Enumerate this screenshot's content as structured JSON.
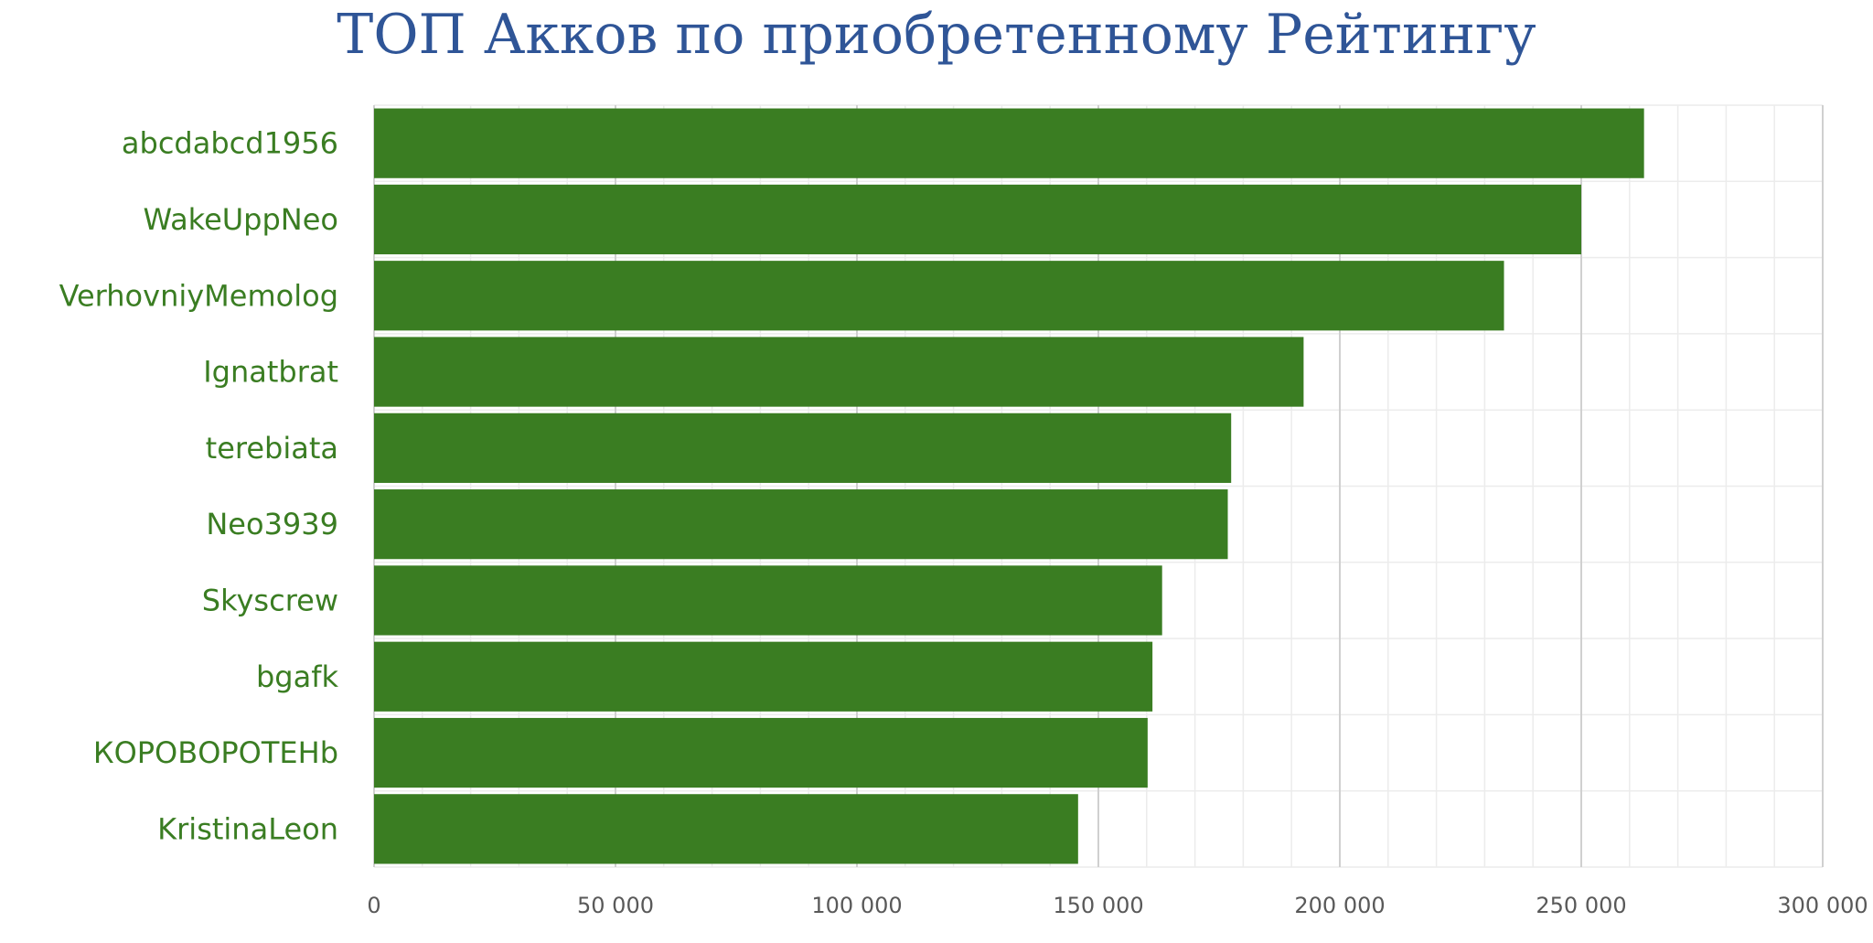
{
  "chart_data": {
    "type": "bar",
    "orientation": "horizontal",
    "title": "ТОП Акков по приобретенному Рейтингу",
    "categories": [
      "abcdabcd1956",
      "WakeUppNeo",
      "VerhovniyMemolog",
      "Ignatbrat",
      "terebiata",
      "Neo3939",
      "Skyscrew",
      "bgafk",
      "КОРОВОРОТЕНb",
      "KristinaLeon"
    ],
    "values": [
      263000,
      250000,
      234000,
      192500,
      177500,
      176800,
      163200,
      161200,
      160200,
      145800
    ],
    "xlim": [
      0,
      300000
    ],
    "x_ticks": [
      0,
      50000,
      100000,
      150000,
      200000,
      250000,
      300000
    ],
    "x_tick_labels": [
      "0",
      "50 000",
      "100 000",
      "150 000",
      "200 000",
      "250 000",
      "300 000"
    ],
    "grid": "on",
    "legend": "none",
    "bar_color": "#3a7d22",
    "title_color": "#2f5597",
    "label_color": "#3a7d22",
    "tick_color": "#595959"
  }
}
